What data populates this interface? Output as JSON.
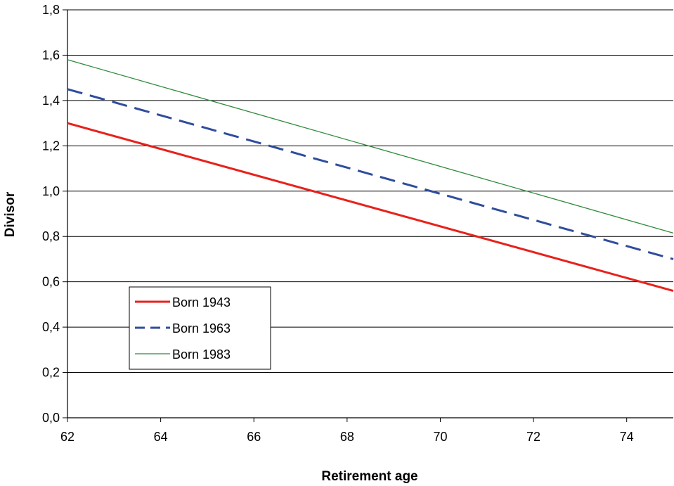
{
  "chart_data": {
    "type": "line",
    "title": "",
    "xlabel": "Retirement age",
    "ylabel": "Divisor",
    "xlim": [
      62,
      75
    ],
    "ylim": [
      0,
      1.8
    ],
    "x_ticks": [
      "62",
      "64",
      "66",
      "68",
      "70",
      "72",
      "74"
    ],
    "y_ticks": [
      "0,0",
      "0,2",
      "0,4",
      "0,6",
      "0,8",
      "1,0",
      "1,2",
      "1,4",
      "1,6",
      "1,8"
    ],
    "grid": "horizontal",
    "legend_placement": "lower-left",
    "series": [
      {
        "name": "Born 1943",
        "color": "#e8211b",
        "style": "solid",
        "width": "thick",
        "x": [
          62,
          75
        ],
        "y": [
          1.3,
          0.56
        ]
      },
      {
        "name": "Born 1963",
        "color": "#2f4d9d",
        "style": "dashed",
        "width": "thick",
        "x": [
          62,
          75
        ],
        "y": [
          1.45,
          0.7
        ]
      },
      {
        "name": "Born 1983",
        "color": "#2e8b3c",
        "style": "solid",
        "width": "thin",
        "x": [
          62,
          75
        ],
        "y": [
          1.58,
          0.815
        ]
      }
    ]
  }
}
